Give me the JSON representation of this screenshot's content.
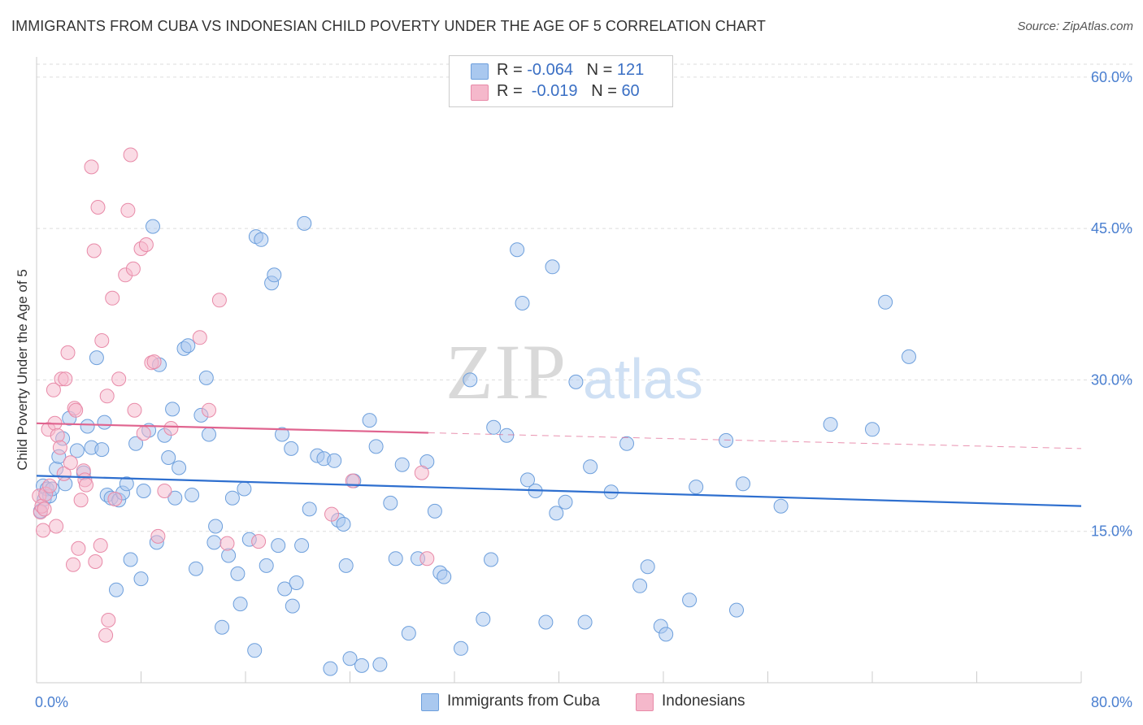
{
  "title": "IMMIGRANTS FROM CUBA VS INDONESIAN CHILD POVERTY UNDER THE AGE OF 5 CORRELATION CHART",
  "source": "Source: ZipAtlas.com",
  "watermark": {
    "zip": "ZIP",
    "atlas": "atlas"
  },
  "legend": {
    "rows": [
      {
        "r_label": "R = ",
        "r_value": "-0.064",
        "n_label": "N = ",
        "n_value": "121"
      },
      {
        "r_label": "R = ",
        "r_value": " -0.019",
        "n_label": "N = ",
        "n_value": "60"
      }
    ]
  },
  "colors": {
    "blue_fill": "#a9c8ef",
    "blue_stroke": "#6d9fdc",
    "blue_line": "#2e6fcf",
    "pink_fill": "#f5b8cb",
    "pink_stroke": "#e88aa8",
    "pink_line": "#e0648f",
    "axis_text": "#4a7fd0",
    "grid": "#dddddd"
  },
  "chart_data": {
    "type": "scatter",
    "xlabel": "",
    "ylabel": "Child Poverty Under the Age of 5",
    "xlim": [
      0,
      80
    ],
    "ylim": [
      0,
      62
    ],
    "x_tick_labels": [
      "0.0%",
      "80.0%"
    ],
    "y_ticks": [
      15,
      30,
      45,
      60
    ],
    "y_tick_labels": [
      "15.0%",
      "30.0%",
      "45.0%",
      "60.0%"
    ],
    "grid": true,
    "legend_position": "bottom-center",
    "series": [
      {
        "name": "Immigrants from Cuba",
        "color": "blue",
        "trend": {
          "x": [
            0,
            80
          ],
          "y": [
            20.5,
            17.5
          ],
          "dashed_from": null
        },
        "points": [
          [
            0.3,
            17.0
          ],
          [
            0.5,
            19.5
          ],
          [
            0.6,
            18.2
          ],
          [
            0.8,
            19.2
          ],
          [
            1.0,
            18.5
          ],
          [
            1.2,
            19.2
          ],
          [
            1.5,
            21.2
          ],
          [
            1.7,
            22.4
          ],
          [
            2.0,
            24.2
          ],
          [
            2.2,
            19.7
          ],
          [
            2.5,
            26.2
          ],
          [
            3.1,
            23.0
          ],
          [
            3.6,
            20.8
          ],
          [
            3.9,
            25.4
          ],
          [
            4.2,
            23.3
          ],
          [
            4.6,
            32.2
          ],
          [
            5.0,
            23.1
          ],
          [
            5.2,
            25.8
          ],
          [
            5.4,
            18.6
          ],
          [
            5.7,
            18.3
          ],
          [
            6.1,
            9.2
          ],
          [
            6.3,
            18.1
          ],
          [
            6.6,
            18.8
          ],
          [
            6.9,
            19.7
          ],
          [
            7.2,
            12.2
          ],
          [
            7.6,
            23.7
          ],
          [
            8.0,
            10.3
          ],
          [
            8.2,
            19.0
          ],
          [
            8.6,
            25.0
          ],
          [
            8.9,
            45.2
          ],
          [
            9.2,
            13.9
          ],
          [
            9.4,
            31.5
          ],
          [
            9.8,
            24.5
          ],
          [
            10.1,
            22.3
          ],
          [
            10.4,
            27.1
          ],
          [
            10.6,
            18.3
          ],
          [
            10.9,
            21.3
          ],
          [
            11.3,
            33.1
          ],
          [
            11.6,
            33.4
          ],
          [
            11.9,
            18.6
          ],
          [
            12.2,
            11.3
          ],
          [
            12.6,
            26.5
          ],
          [
            13.0,
            30.2
          ],
          [
            13.2,
            24.6
          ],
          [
            13.6,
            13.9
          ],
          [
            13.7,
            15.5
          ],
          [
            14.2,
            5.5
          ],
          [
            14.7,
            12.6
          ],
          [
            15.0,
            18.3
          ],
          [
            15.4,
            10.8
          ],
          [
            15.6,
            7.8
          ],
          [
            15.9,
            19.2
          ],
          [
            16.3,
            14.2
          ],
          [
            16.7,
            3.2
          ],
          [
            16.8,
            44.2
          ],
          [
            17.2,
            43.9
          ],
          [
            17.6,
            11.6
          ],
          [
            18.0,
            39.6
          ],
          [
            18.2,
            40.4
          ],
          [
            18.5,
            13.6
          ],
          [
            18.8,
            24.6
          ],
          [
            19.0,
            9.3
          ],
          [
            19.5,
            23.2
          ],
          [
            19.6,
            7.6
          ],
          [
            19.9,
            9.9
          ],
          [
            20.3,
            13.6
          ],
          [
            20.5,
            45.5
          ],
          [
            20.9,
            17.2
          ],
          [
            21.5,
            22.5
          ],
          [
            22.0,
            22.2
          ],
          [
            22.5,
            1.4
          ],
          [
            22.8,
            22.0
          ],
          [
            23.1,
            16.1
          ],
          [
            23.5,
            15.7
          ],
          [
            23.7,
            11.6
          ],
          [
            24.0,
            2.4
          ],
          [
            24.3,
            20.0
          ],
          [
            24.9,
            1.7
          ],
          [
            25.5,
            26.0
          ],
          [
            26.0,
            23.4
          ],
          [
            26.3,
            1.8
          ],
          [
            27.1,
            17.8
          ],
          [
            27.5,
            12.3
          ],
          [
            28.0,
            21.6
          ],
          [
            28.5,
            4.9
          ],
          [
            29.2,
            12.3
          ],
          [
            29.9,
            21.9
          ],
          [
            30.5,
            17.0
          ],
          [
            30.9,
            10.9
          ],
          [
            31.2,
            10.5
          ],
          [
            32.5,
            3.4
          ],
          [
            33.2,
            30.0
          ],
          [
            34.2,
            6.3
          ],
          [
            34.8,
            12.2
          ],
          [
            35.0,
            25.3
          ],
          [
            36.0,
            24.5
          ],
          [
            36.8,
            42.9
          ],
          [
            37.2,
            37.6
          ],
          [
            37.6,
            20.1
          ],
          [
            38.2,
            19.0
          ],
          [
            39.0,
            6.0
          ],
          [
            39.5,
            41.2
          ],
          [
            39.8,
            16.8
          ],
          [
            40.5,
            17.9
          ],
          [
            41.3,
            29.8
          ],
          [
            42.0,
            6.0
          ],
          [
            42.4,
            21.4
          ],
          [
            44.0,
            18.9
          ],
          [
            45.2,
            23.7
          ],
          [
            46.2,
            9.6
          ],
          [
            46.8,
            11.5
          ],
          [
            47.8,
            5.6
          ],
          [
            48.2,
            4.8
          ],
          [
            50.0,
            8.2
          ],
          [
            50.5,
            19.4
          ],
          [
            52.8,
            24.0
          ],
          [
            53.6,
            7.2
          ],
          [
            54.1,
            19.7
          ],
          [
            57.0,
            17.5
          ],
          [
            60.8,
            25.6
          ],
          [
            64.0,
            25.1
          ],
          [
            65.0,
            37.7
          ],
          [
            66.8,
            32.3
          ]
        ]
      },
      {
        "name": "Indonesians",
        "color": "pink",
        "trend": {
          "x": [
            0,
            80
          ],
          "y": [
            25.7,
            23.2
          ],
          "dashed_from": 30
        },
        "points": [
          [
            0.2,
            18.5
          ],
          [
            0.3,
            16.9
          ],
          [
            0.4,
            17.5
          ],
          [
            0.5,
            15.1
          ],
          [
            0.6,
            17.2
          ],
          [
            0.7,
            18.7
          ],
          [
            0.9,
            25.1
          ],
          [
            1.0,
            19.5
          ],
          [
            1.3,
            29.0
          ],
          [
            1.4,
            25.7
          ],
          [
            1.5,
            15.5
          ],
          [
            1.6,
            24.5
          ],
          [
            1.8,
            23.3
          ],
          [
            1.9,
            30.1
          ],
          [
            2.1,
            20.7
          ],
          [
            2.2,
            30.1
          ],
          [
            2.4,
            32.7
          ],
          [
            2.6,
            21.8
          ],
          [
            2.8,
            11.7
          ],
          [
            2.9,
            27.2
          ],
          [
            3.0,
            27.0
          ],
          [
            3.2,
            13.3
          ],
          [
            3.4,
            18.1
          ],
          [
            3.6,
            21.0
          ],
          [
            3.7,
            20.1
          ],
          [
            3.8,
            19.6
          ],
          [
            4.2,
            51.1
          ],
          [
            4.4,
            42.8
          ],
          [
            4.5,
            12.0
          ],
          [
            4.7,
            47.1
          ],
          [
            4.9,
            13.6
          ],
          [
            5.0,
            33.9
          ],
          [
            5.3,
            4.7
          ],
          [
            5.4,
            28.4
          ],
          [
            5.5,
            6.2
          ],
          [
            5.8,
            38.1
          ],
          [
            6.0,
            18.2
          ],
          [
            6.3,
            30.1
          ],
          [
            6.8,
            40.4
          ],
          [
            7.0,
            46.8
          ],
          [
            7.2,
            52.3
          ],
          [
            7.4,
            41.0
          ],
          [
            7.5,
            27.0
          ],
          [
            8.0,
            43.0
          ],
          [
            8.2,
            24.7
          ],
          [
            8.4,
            43.4
          ],
          [
            8.8,
            31.7
          ],
          [
            9.0,
            31.8
          ],
          [
            9.3,
            14.5
          ],
          [
            9.8,
            19.0
          ],
          [
            10.3,
            25.2
          ],
          [
            12.5,
            34.2
          ],
          [
            13.2,
            27.0
          ],
          [
            14.0,
            37.9
          ],
          [
            14.6,
            13.8
          ],
          [
            17.0,
            14.0
          ],
          [
            22.6,
            16.7
          ],
          [
            24.2,
            20.0
          ],
          [
            29.5,
            20.8
          ],
          [
            29.9,
            12.3
          ]
        ]
      }
    ]
  }
}
